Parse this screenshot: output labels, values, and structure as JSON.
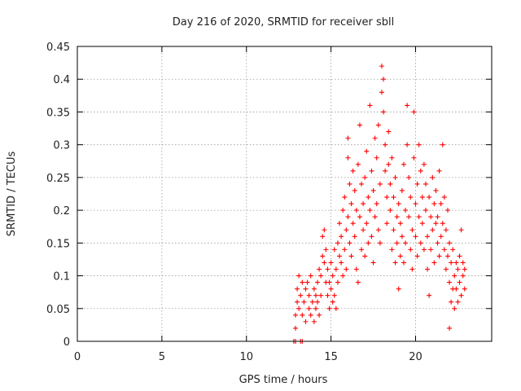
{
  "chart_data": {
    "type": "scatter",
    "title": "Day 216 of 2020, SRMTID for receiver sbll",
    "xlabel": "GPS time / hours",
    "ylabel": "SRMTID / TECUs",
    "xlim": [
      0,
      24.5
    ],
    "ylim": [
      0,
      0.45
    ],
    "x_ticks": [
      0,
      5,
      10,
      15,
      20
    ],
    "x_tick_labels": [
      "0",
      "5",
      "10",
      "15",
      "20"
    ],
    "y_ticks": [
      0,
      0.05,
      0.1,
      0.15,
      0.2,
      0.25,
      0.3,
      0.35,
      0.4,
      0.45
    ],
    "y_tick_labels": [
      "0",
      "0.05",
      "0.1",
      "0.15",
      "0.2",
      "0.25",
      "0.3",
      "0.35",
      "0.4",
      "0.45"
    ],
    "grid": true,
    "marker": "+",
    "color": "#ff0000",
    "series": [
      {
        "name": "SRMTID",
        "points": [
          [
            12.8,
            0.0
          ],
          [
            12.9,
            0.0
          ],
          [
            13.2,
            0.0
          ],
          [
            13.3,
            0.0
          ],
          [
            12.9,
            0.02
          ],
          [
            12.9,
            0.04
          ],
          [
            13.0,
            0.06
          ],
          [
            13.0,
            0.08
          ],
          [
            13.1,
            0.1
          ],
          [
            13.1,
            0.05
          ],
          [
            13.2,
            0.07
          ],
          [
            13.3,
            0.09
          ],
          [
            13.3,
            0.04
          ],
          [
            13.4,
            0.06
          ],
          [
            13.5,
            0.08
          ],
          [
            13.5,
            0.03
          ],
          [
            13.6,
            0.09
          ],
          [
            13.7,
            0.05
          ],
          [
            13.7,
            0.07
          ],
          [
            13.8,
            0.1
          ],
          [
            13.8,
            0.04
          ],
          [
            13.9,
            0.06
          ],
          [
            14.0,
            0.08
          ],
          [
            14.0,
            0.03
          ],
          [
            14.1,
            0.05
          ],
          [
            14.1,
            0.07
          ],
          [
            14.2,
            0.09
          ],
          [
            14.2,
            0.06
          ],
          [
            14.3,
            0.11
          ],
          [
            14.3,
            0.04
          ],
          [
            14.4,
            0.07
          ],
          [
            14.4,
            0.1
          ],
          [
            14.5,
            0.13
          ],
          [
            14.5,
            0.16
          ],
          [
            14.6,
            0.12
          ],
          [
            14.6,
            0.17
          ],
          [
            14.7,
            0.14
          ],
          [
            14.7,
            0.09
          ],
          [
            14.8,
            0.07
          ],
          [
            14.8,
            0.11
          ],
          [
            14.9,
            0.05
          ],
          [
            14.9,
            0.09
          ],
          [
            15.0,
            0.12
          ],
          [
            15.0,
            0.08
          ],
          [
            15.1,
            0.06
          ],
          [
            15.1,
            0.1
          ],
          [
            15.2,
            0.14
          ],
          [
            15.2,
            0.07
          ],
          [
            15.3,
            0.05
          ],
          [
            15.3,
            0.11
          ],
          [
            15.4,
            0.09
          ],
          [
            15.4,
            0.15
          ],
          [
            15.5,
            0.13
          ],
          [
            15.5,
            0.18
          ],
          [
            15.6,
            0.12
          ],
          [
            15.6,
            0.16
          ],
          [
            15.7,
            0.2
          ],
          [
            15.7,
            0.1
          ],
          [
            15.8,
            0.14
          ],
          [
            15.8,
            0.22
          ],
          [
            15.9,
            0.17
          ],
          [
            15.9,
            0.11
          ],
          [
            16.0,
            0.19
          ],
          [
            16.0,
            0.28
          ],
          [
            16.0,
            0.31
          ],
          [
            16.1,
            0.24
          ],
          [
            16.1,
            0.15
          ],
          [
            16.2,
            0.21
          ],
          [
            16.2,
            0.13
          ],
          [
            16.3,
            0.18
          ],
          [
            16.3,
            0.26
          ],
          [
            16.4,
            0.16
          ],
          [
            16.4,
            0.23
          ],
          [
            16.5,
            0.11
          ],
          [
            16.5,
            0.2
          ],
          [
            16.6,
            0.27
          ],
          [
            16.6,
            0.09
          ],
          [
            16.7,
            0.33
          ],
          [
            16.7,
            0.19
          ],
          [
            16.8,
            0.14
          ],
          [
            16.8,
            0.24
          ],
          [
            16.9,
            0.17
          ],
          [
            16.9,
            0.21
          ],
          [
            17.0,
            0.13
          ],
          [
            17.0,
            0.25
          ],
          [
            17.1,
            0.18
          ],
          [
            17.1,
            0.29
          ],
          [
            17.2,
            0.15
          ],
          [
            17.2,
            0.22
          ],
          [
            17.3,
            0.36
          ],
          [
            17.3,
            0.2
          ],
          [
            17.4,
            0.26
          ],
          [
            17.4,
            0.16
          ],
          [
            17.5,
            0.12
          ],
          [
            17.5,
            0.23
          ],
          [
            17.6,
            0.31
          ],
          [
            17.6,
            0.19
          ],
          [
            17.7,
            0.28
          ],
          [
            17.7,
            0.21
          ],
          [
            17.8,
            0.17
          ],
          [
            17.8,
            0.33
          ],
          [
            17.9,
            0.24
          ],
          [
            17.9,
            0.15
          ],
          [
            18.0,
            0.42
          ],
          [
            18.0,
            0.38
          ],
          [
            18.1,
            0.4
          ],
          [
            18.1,
            0.35
          ],
          [
            18.2,
            0.3
          ],
          [
            18.2,
            0.26
          ],
          [
            18.3,
            0.22
          ],
          [
            18.3,
            0.18
          ],
          [
            18.4,
            0.27
          ],
          [
            18.4,
            0.32
          ],
          [
            18.5,
            0.2
          ],
          [
            18.5,
            0.24
          ],
          [
            18.6,
            0.14
          ],
          [
            18.6,
            0.28
          ],
          [
            18.7,
            0.17
          ],
          [
            18.7,
            0.22
          ],
          [
            18.8,
            0.12
          ],
          [
            18.8,
            0.25
          ],
          [
            18.9,
            0.19
          ],
          [
            18.9,
            0.15
          ],
          [
            19.0,
            0.21
          ],
          [
            19.0,
            0.08
          ],
          [
            19.1,
            0.13
          ],
          [
            19.1,
            0.18
          ],
          [
            19.2,
            0.23
          ],
          [
            19.2,
            0.16
          ],
          [
            19.3,
            0.27
          ],
          [
            19.3,
            0.12
          ],
          [
            19.4,
            0.2
          ],
          [
            19.4,
            0.15
          ],
          [
            19.5,
            0.36
          ],
          [
            19.5,
            0.3
          ],
          [
            19.6,
            0.25
          ],
          [
            19.6,
            0.19
          ],
          [
            19.7,
            0.14
          ],
          [
            19.7,
            0.22
          ],
          [
            19.8,
            0.17
          ],
          [
            19.8,
            0.11
          ],
          [
            19.9,
            0.35
          ],
          [
            19.9,
            0.28
          ],
          [
            20.0,
            0.21
          ],
          [
            20.0,
            0.16
          ],
          [
            20.1,
            0.24
          ],
          [
            20.1,
            0.13
          ],
          [
            20.2,
            0.3
          ],
          [
            20.2,
            0.19
          ],
          [
            20.3,
            0.26
          ],
          [
            20.3,
            0.15
          ],
          [
            20.4,
            0.22
          ],
          [
            20.4,
            0.18
          ],
          [
            20.5,
            0.27
          ],
          [
            20.5,
            0.14
          ],
          [
            20.6,
            0.2
          ],
          [
            20.6,
            0.24
          ],
          [
            20.7,
            0.16
          ],
          [
            20.7,
            0.11
          ],
          [
            20.8,
            0.22
          ],
          [
            20.8,
            0.07
          ],
          [
            20.9,
            0.19
          ],
          [
            20.9,
            0.14
          ],
          [
            21.0,
            0.25
          ],
          [
            21.0,
            0.17
          ],
          [
            21.1,
            0.21
          ],
          [
            21.1,
            0.12
          ],
          [
            21.2,
            0.18
          ],
          [
            21.2,
            0.23
          ],
          [
            21.3,
            0.15
          ],
          [
            21.3,
            0.19
          ],
          [
            21.4,
            0.26
          ],
          [
            21.4,
            0.13
          ],
          [
            21.5,
            0.21
          ],
          [
            21.5,
            0.16
          ],
          [
            21.6,
            0.3
          ],
          [
            21.6,
            0.18
          ],
          [
            21.7,
            0.14
          ],
          [
            21.7,
            0.22
          ],
          [
            21.8,
            0.11
          ],
          [
            21.8,
            0.17
          ],
          [
            21.9,
            0.13
          ],
          [
            21.9,
            0.2
          ],
          [
            22.0,
            0.15
          ],
          [
            22.0,
            0.09
          ],
          [
            22.0,
            0.02
          ],
          [
            22.1,
            0.06
          ],
          [
            22.1,
            0.12
          ],
          [
            22.2,
            0.08
          ],
          [
            22.2,
            0.14
          ],
          [
            22.3,
            0.1
          ],
          [
            22.3,
            0.05
          ],
          [
            22.4,
            0.12
          ],
          [
            22.4,
            0.08
          ],
          [
            22.5,
            0.11
          ],
          [
            22.5,
            0.06
          ],
          [
            22.6,
            0.13
          ],
          [
            22.6,
            0.09
          ],
          [
            22.7,
            0.07
          ],
          [
            22.7,
            0.17
          ],
          [
            22.8,
            0.1
          ],
          [
            22.8,
            0.12
          ],
          [
            22.9,
            0.08
          ],
          [
            22.9,
            0.11
          ]
        ]
      }
    ]
  }
}
